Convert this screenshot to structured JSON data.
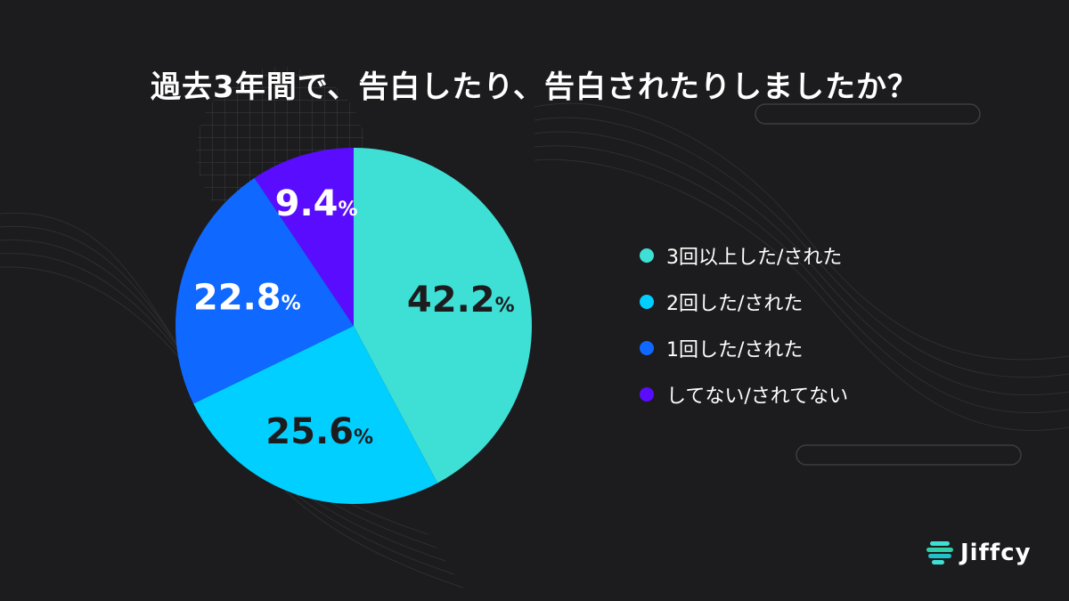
{
  "title": "過去3年間で、告白したり、告白されたりしましたか？",
  "brand": {
    "name": "Jiffcy",
    "icon": "jiffcy-logo-icon"
  },
  "chart_data": {
    "type": "pie",
    "unit": "%",
    "start_angle_deg": 0,
    "direction": "clockwise",
    "legend_position": "right",
    "slices": [
      {
        "label": "3回以上した/された",
        "value": 42.2,
        "display": "42.2",
        "color": "#3ee0d6",
        "label_color": "#1c1c1e"
      },
      {
        "label": "2回した/された",
        "value": 25.6,
        "display": "25.6",
        "color": "#00cfff",
        "label_color": "#1c1c1e"
      },
      {
        "label": "1回した/された",
        "value": 22.8,
        "display": "22.8",
        "color": "#0f68ff",
        "label_color": "#ffffff"
      },
      {
        "label": "してない/されてない",
        "value": 9.4,
        "display": "9.4",
        "color": "#5a0cff",
        "label_color": "#ffffff"
      }
    ]
  }
}
